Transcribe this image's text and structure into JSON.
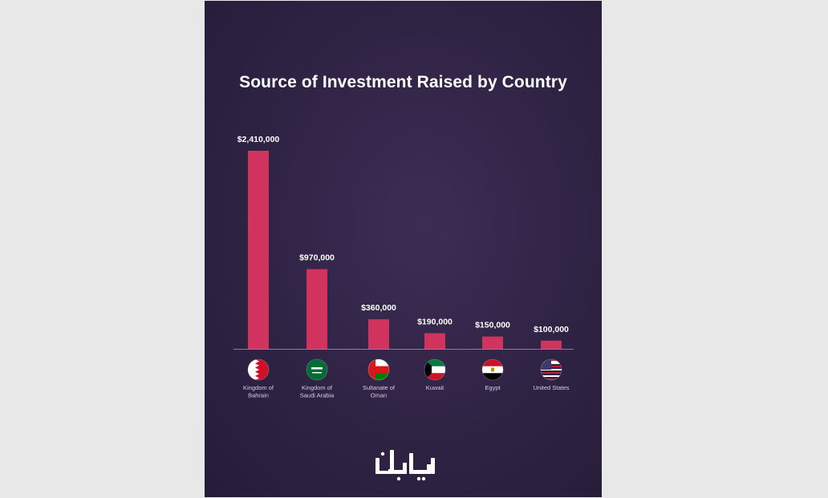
{
  "chart_data": {
    "type": "bar",
    "title": "Source of Investment Raised by Country",
    "xlabel": "",
    "ylabel": "",
    "ylim": [
      0,
      2410000
    ],
    "grid": false,
    "legend": "none",
    "categories": [
      {
        "lines": [
          "Kingdom of",
          "Bahrain"
        ],
        "flag": "bahrain-flag-icon"
      },
      {
        "lines": [
          "Kingdom of",
          "Saudi Arabia"
        ],
        "flag": "saudi-arabia-flag-icon"
      },
      {
        "lines": [
          "Sultanate of",
          "Oman"
        ],
        "flag": "oman-flag-icon"
      },
      {
        "lines": [
          "Kuwait"
        ],
        "flag": "kuwait-flag-icon"
      },
      {
        "lines": [
          "Egypt"
        ],
        "flag": "egypt-flag-icon"
      },
      {
        "lines": [
          "United States"
        ],
        "flag": "united-states-flag-icon"
      }
    ],
    "values": [
      2410000,
      970000,
      360000,
      190000,
      150000,
      100000
    ],
    "value_labels": [
      "$2,410,000",
      "$970,000",
      "$360,000",
      "$190,000",
      "$150,000",
      "$100,000"
    ],
    "colors": {
      "bar": "#d1325e",
      "background": "#2f2344",
      "axis": "#8a7d9c",
      "label": "#ffffff",
      "category_label": "#d6d0de"
    }
  },
  "logo": {
    "name": "bayan-logo",
    "text": "بيان"
  }
}
